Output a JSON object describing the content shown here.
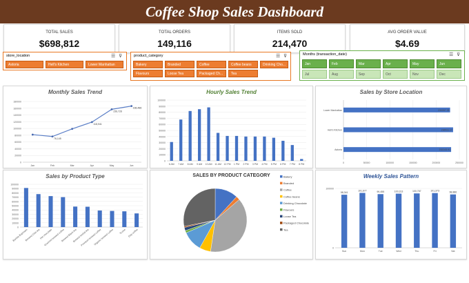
{
  "title": "Coffee Shop Sales Dashboard",
  "kpis": [
    {
      "label": "TOTAL SALES",
      "value": "$698,812"
    },
    {
      "label": "TOTAL ORDERS",
      "value": "149,116"
    },
    {
      "label": "ITEMS SOLD",
      "value": "214,470"
    },
    {
      "label": "AVG ORDER VALUE",
      "value": "$4.69"
    }
  ],
  "slicers": {
    "store": {
      "title": "store_location",
      "items": [
        "Astoria",
        "Hell's Kitchen",
        "Lower Manhattan"
      ]
    },
    "category": {
      "title": "product_category",
      "items": [
        "Bakery",
        "Branded",
        "Coffee",
        "Coffee beans",
        "Drinking Cho...",
        "Flavours",
        "Loose Tea",
        "Packaged Ch...",
        "Tea"
      ]
    },
    "months": {
      "title": "Months (transaction_date)",
      "items": [
        "Jan",
        "Feb",
        "Mar",
        "Apr",
        "May",
        "Jun",
        "Jul",
        "Aug",
        "Sep",
        "Oct",
        "Nov",
        "Dec"
      ]
    }
  },
  "colors": {
    "brown": "#6b3a1f",
    "orange": "#ed7d31",
    "green": "#6ab04c",
    "blue": "#4472c4",
    "green_title": "#538135"
  },
  "chart_data": [
    {
      "type": "line",
      "title": "Monthly Sales Trend",
      "categories": [
        "Jan",
        "Feb",
        "Mar",
        "Apr",
        "May",
        "Jun"
      ],
      "values": [
        81678,
        76145,
        98835,
        118941,
        156728,
        166486
      ],
      "labels": [
        "",
        "76,145",
        "",
        "118,941",
        "156,728",
        "166,486"
      ],
      "yticks": [
        "0",
        "20000",
        "40000",
        "60000",
        "80000",
        "100000",
        "120000",
        "140000",
        "160000",
        "180000"
      ],
      "ylim": [
        0,
        180000
      ]
    },
    {
      "type": "bar",
      "title": "Hourly Sales Trend",
      "categories": [
        "6 AM",
        "7 AM",
        "8 AM",
        "9 AM",
        "10 AM",
        "11 AM",
        "12 PM",
        "1 PM",
        "2 PM",
        "3 PM",
        "4 PM",
        "5 PM",
        "6 PM",
        "7 PM",
        "8 PM"
      ],
      "values": [
        31000,
        68000,
        82000,
        85000,
        88000,
        46000,
        41000,
        41000,
        40000,
        40000,
        40000,
        38000,
        33000,
        26000,
        3000
      ],
      "yticks": [
        "0",
        "10000",
        "20000",
        "30000",
        "40000",
        "50000",
        "60000",
        "70000",
        "80000",
        "90000",
        "100000"
      ],
      "ylim": [
        0,
        100000
      ]
    },
    {
      "type": "bar",
      "title": "Sales by Store Location",
      "categories": [
        "Lower Manhattan",
        "Hell's Kitchen",
        "Astoria"
      ],
      "values": [
        230057.25,
        236511.17,
        232243.91
      ],
      "labels": [
        "230057.25",
        "236511.17",
        "232243.91"
      ],
      "xticks": [
        "0",
        "50000",
        "100000",
        "150000",
        "200000",
        "250000"
      ],
      "xlim": [
        0,
        250000
      ]
    },
    {
      "type": "bar",
      "title": "Sales by Product Type",
      "categories": [
        "Barista Espresso",
        "Brewed Chai tea",
        "Hot chocolate",
        "Gourmet brewed coffee",
        "Brewed Black tea",
        "Brewed herbal tea",
        "Premium brewed coffee",
        "Organic brewed coffee",
        "Scone",
        "Drip coffee"
      ],
      "values": [
        91406,
        77082,
        72416,
        70034,
        47932,
        47539,
        38781,
        37747,
        36866,
        31984
      ],
      "yticks": [
        "0",
        "10000",
        "20000",
        "30000",
        "40000",
        "50000",
        "60000",
        "70000",
        "80000",
        "90000",
        "100000"
      ],
      "ylim": [
        0,
        100000
      ]
    },
    {
      "type": "pie",
      "title": "SALES BY PRODUCT CATEGORY",
      "categories": [
        "Bakery",
        "Branded",
        "Coffee",
        "Coffee beans",
        "Drinking Chocolate",
        "Flavours",
        "Loose Tea",
        "Packaged Chocolate",
        "Tea"
      ],
      "values": [
        82316,
        13607,
        269952,
        40085,
        72416,
        8409,
        11213,
        4408,
        196406
      ],
      "colors": [
        "#4472c4",
        "#ed7d31",
        "#a5a5a5",
        "#ffc000",
        "#5b9bd5",
        "#70ad47",
        "#264478",
        "#9e480e",
        "#636363"
      ]
    },
    {
      "type": "bar",
      "title": "Weekly Sales Pattern",
      "categories": [
        "Sun",
        "Mon",
        "Tue",
        "Wed",
        "Thu",
        "Fri",
        "Sat"
      ],
      "values": [
        98341,
        101677,
        99455,
        100313,
        100767,
        101373,
        98886
      ],
      "labels": [
        "98,341",
        "101,677",
        "99,455",
        "100,313",
        "100,767",
        "101,373",
        "98,886"
      ],
      "yticks": [
        "0",
        "100000"
      ],
      "ylim": [
        0,
        110000
      ]
    }
  ]
}
